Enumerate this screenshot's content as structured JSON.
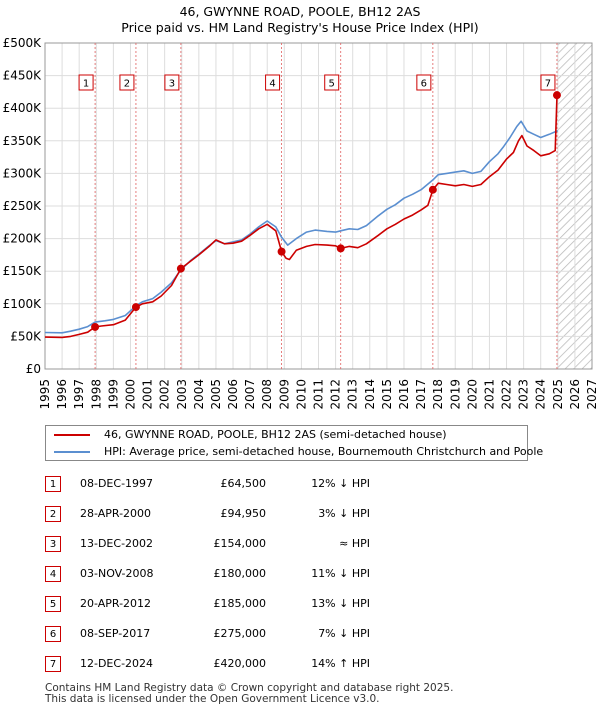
{
  "title_line1": "46, GWYNNE ROAD, POOLE, BH12 2AS",
  "title_line2": "Price paid vs. HM Land Registry's House Price Index (HPI)",
  "chart_data": {
    "type": "line",
    "xlim": [
      1995,
      2027
    ],
    "ylim": [
      0,
      500000
    ],
    "x_ticks": [
      1995,
      1996,
      1997,
      1998,
      1999,
      2000,
      2001,
      2002,
      2003,
      2004,
      2005,
      2006,
      2007,
      2008,
      2009,
      2010,
      2011,
      2012,
      2013,
      2014,
      2015,
      2016,
      2017,
      2018,
      2019,
      2020,
      2021,
      2022,
      2023,
      2024,
      2025,
      2026,
      2027
    ],
    "y_ticks": [
      0,
      50000,
      100000,
      150000,
      200000,
      250000,
      300000,
      350000,
      400000,
      450000,
      500000
    ],
    "y_tick_labels": [
      "£0",
      "£50K",
      "£100K",
      "£150K",
      "£200K",
      "£250K",
      "£300K",
      "£350K",
      "£400K",
      "£450K",
      "£500K"
    ],
    "grid": true,
    "forecast_from": 2025.0,
    "series": [
      {
        "name": "46, GWYNNE ROAD, POOLE, BH12 2AS (semi-detached house)",
        "color": "#cc0000",
        "points": [
          [
            1995.0,
            49000
          ],
          [
            1996.0,
            48500
          ],
          [
            1996.5,
            50000
          ],
          [
            1997.0,
            53000
          ],
          [
            1997.5,
            56500
          ],
          [
            1997.93,
            64500
          ],
          [
            1998.3,
            66000
          ],
          [
            1999.0,
            68000
          ],
          [
            1999.7,
            75000
          ],
          [
            2000.32,
            94950
          ],
          [
            2000.7,
            100000
          ],
          [
            2001.3,
            103000
          ],
          [
            2001.8,
            112000
          ],
          [
            2002.4,
            128000
          ],
          [
            2002.95,
            154000
          ],
          [
            2003.5,
            165000
          ],
          [
            2004.0,
            175000
          ],
          [
            2004.6,
            188000
          ],
          [
            2005.0,
            198000
          ],
          [
            2005.5,
            192000
          ],
          [
            2006.0,
            193000
          ],
          [
            2006.5,
            196000
          ],
          [
            2007.0,
            205000
          ],
          [
            2007.5,
            215000
          ],
          [
            2008.0,
            222000
          ],
          [
            2008.5,
            212000
          ],
          [
            2008.84,
            180000
          ],
          [
            2009.1,
            170000
          ],
          [
            2009.3,
            168000
          ],
          [
            2009.7,
            182000
          ],
          [
            2010.3,
            188000
          ],
          [
            2010.8,
            191000
          ],
          [
            2011.5,
            190000
          ],
          [
            2012.0,
            189000
          ],
          [
            2012.3,
            185000
          ],
          [
            2012.8,
            188000
          ],
          [
            2013.3,
            186000
          ],
          [
            2013.8,
            192000
          ],
          [
            2014.5,
            205000
          ],
          [
            2015.0,
            215000
          ],
          [
            2015.5,
            222000
          ],
          [
            2016.0,
            230000
          ],
          [
            2016.5,
            236000
          ],
          [
            2017.0,
            244000
          ],
          [
            2017.4,
            251000
          ],
          [
            2017.69,
            275000
          ],
          [
            2018.0,
            285000
          ],
          [
            2018.5,
            283000
          ],
          [
            2019.0,
            281000
          ],
          [
            2019.5,
            283000
          ],
          [
            2020.0,
            280000
          ],
          [
            2020.5,
            283000
          ],
          [
            2021.0,
            295000
          ],
          [
            2021.5,
            305000
          ],
          [
            2022.0,
            322000
          ],
          [
            2022.4,
            332000
          ],
          [
            2022.7,
            350000
          ],
          [
            2022.9,
            358000
          ],
          [
            2023.2,
            342000
          ],
          [
            2023.6,
            335000
          ],
          [
            2024.0,
            327000
          ],
          [
            2024.5,
            330000
          ],
          [
            2024.85,
            335000
          ],
          [
            2024.95,
            420000
          ],
          [
            2025.0,
            420000
          ]
        ]
      },
      {
        "name": "HPI: Average price, semi-detached house, Bournemouth Christchurch and Poole",
        "color": "#5b8fd0",
        "points": [
          [
            1995.0,
            56000
          ],
          [
            1996.0,
            55500
          ],
          [
            1996.5,
            58000
          ],
          [
            1997.0,
            61000
          ],
          [
            1997.5,
            65000
          ],
          [
            1997.93,
            72000
          ],
          [
            1998.5,
            74000
          ],
          [
            1999.0,
            76000
          ],
          [
            1999.7,
            82000
          ],
          [
            2000.32,
            97000
          ],
          [
            2000.7,
            103000
          ],
          [
            2001.3,
            108000
          ],
          [
            2001.8,
            118000
          ],
          [
            2002.4,
            132000
          ],
          [
            2002.95,
            152000
          ],
          [
            2003.5,
            166000
          ],
          [
            2004.0,
            176000
          ],
          [
            2004.6,
            189000
          ],
          [
            2005.0,
            197000
          ],
          [
            2005.5,
            192000
          ],
          [
            2006.0,
            195000
          ],
          [
            2006.5,
            198000
          ],
          [
            2007.0,
            207000
          ],
          [
            2007.5,
            218000
          ],
          [
            2008.0,
            227000
          ],
          [
            2008.5,
            218000
          ],
          [
            2008.84,
            202000
          ],
          [
            2009.2,
            190000
          ],
          [
            2009.7,
            200000
          ],
          [
            2010.3,
            210000
          ],
          [
            2010.8,
            213000
          ],
          [
            2011.5,
            211000
          ],
          [
            2012.0,
            210000
          ],
          [
            2012.3,
            212000
          ],
          [
            2012.8,
            215000
          ],
          [
            2013.3,
            214000
          ],
          [
            2013.8,
            220000
          ],
          [
            2014.5,
            235000
          ],
          [
            2015.0,
            245000
          ],
          [
            2015.5,
            252000
          ],
          [
            2016.0,
            262000
          ],
          [
            2016.5,
            268000
          ],
          [
            2017.0,
            275000
          ],
          [
            2017.69,
            290000
          ],
          [
            2018.0,
            298000
          ],
          [
            2018.5,
            300000
          ],
          [
            2019.0,
            302000
          ],
          [
            2019.5,
            304000
          ],
          [
            2020.0,
            300000
          ],
          [
            2020.5,
            303000
          ],
          [
            2021.0,
            318000
          ],
          [
            2021.5,
            330000
          ],
          [
            2021.8,
            340000
          ],
          [
            2022.2,
            355000
          ],
          [
            2022.6,
            372000
          ],
          [
            2022.85,
            380000
          ],
          [
            2023.2,
            365000
          ],
          [
            2023.6,
            360000
          ],
          [
            2024.0,
            355000
          ],
          [
            2024.5,
            360000
          ],
          [
            2024.95,
            365000
          ],
          [
            2025.0,
            365000
          ]
        ]
      }
    ],
    "markers": [
      {
        "label": "1",
        "x": 1997.93,
        "y": 64500
      },
      {
        "label": "2",
        "x": 2000.32,
        "y": 94950
      },
      {
        "label": "3",
        "x": 2002.95,
        "y": 154000
      },
      {
        "label": "4",
        "x": 2008.84,
        "y": 180000
      },
      {
        "label": "5",
        "x": 2012.3,
        "y": 185000
      },
      {
        "label": "6",
        "x": 2017.69,
        "y": 275000
      },
      {
        "label": "7",
        "x": 2024.95,
        "y": 420000
      }
    ]
  },
  "legend": {
    "property_label": "46, GWYNNE ROAD, POOLE, BH12 2AS (semi-detached house)",
    "hpi_label": "HPI: Average price, semi-detached house, Bournemouth Christchurch and Poole"
  },
  "sales": [
    {
      "num": "1",
      "date": "08-DEC-1997",
      "price": "£64,500",
      "hpi": "12% ↓ HPI"
    },
    {
      "num": "2",
      "date": "28-APR-2000",
      "price": "£94,950",
      "hpi": "3% ↓ HPI"
    },
    {
      "num": "3",
      "date": "13-DEC-2002",
      "price": "£154,000",
      "hpi": "≈ HPI"
    },
    {
      "num": "4",
      "date": "03-NOV-2008",
      "price": "£180,000",
      "hpi": "11% ↓ HPI"
    },
    {
      "num": "5",
      "date": "20-APR-2012",
      "price": "£185,000",
      "hpi": "13% ↓ HPI"
    },
    {
      "num": "6",
      "date": "08-SEP-2017",
      "price": "£275,000",
      "hpi": "7% ↓ HPI"
    },
    {
      "num": "7",
      "date": "12-DEC-2024",
      "price": "£420,000",
      "hpi": "14% ↑ HPI"
    }
  ],
  "footer": {
    "line1": "Contains HM Land Registry data © Crown copyright and database right 2025.",
    "line2": "This data is licensed under the Open Government Licence v3.0."
  }
}
